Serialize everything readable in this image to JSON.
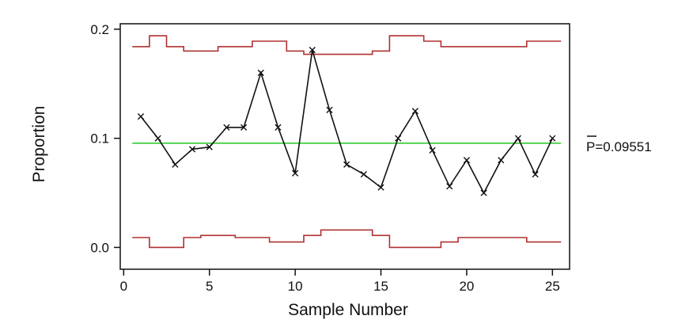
{
  "chart_data": {
    "type": "line",
    "title": "",
    "xlabel": "Sample Number",
    "ylabel": "Proportion",
    "xlim": [
      -0.2,
      26.0
    ],
    "ylim": [
      -0.02,
      0.205
    ],
    "x_ticks": [
      0,
      5,
      10,
      15,
      20,
      25
    ],
    "x_tick_labels": [
      "0",
      "5",
      "10",
      "15",
      "20",
      "25"
    ],
    "y_ticks": [
      0.0,
      0.1,
      0.2
    ],
    "y_tick_labels": [
      "0.0",
      "0.1",
      "0.2"
    ],
    "grid": false,
    "center_line": {
      "value": 0.09551,
      "label": "P=0.09551",
      "color": "#33cc33"
    },
    "series": [
      {
        "marker": "x",
        "color": "#111111",
        "x": [
          1,
          2,
          3,
          4,
          5,
          6,
          7,
          8,
          9,
          10,
          11,
          12,
          13,
          14,
          15,
          16,
          17,
          18,
          19,
          20,
          21,
          22,
          23,
          24,
          25
        ],
        "values": [
          0.12,
          0.1,
          0.076,
          0.09,
          0.092,
          0.11,
          0.11,
          0.16,
          0.11,
          0.068,
          0.181,
          0.126,
          0.076,
          0.067,
          0.055,
          0.1,
          0.125,
          0.089,
          0.056,
          0.08,
          0.05,
          0.08,
          0.1,
          0.067,
          0.1
        ]
      }
    ],
    "control_limits": {
      "color": "#b03030",
      "x": [
        1,
        2,
        3,
        4,
        5,
        6,
        7,
        8,
        9,
        10,
        11,
        12,
        13,
        14,
        15,
        16,
        17,
        18,
        19,
        20,
        21,
        22,
        23,
        24,
        25
      ],
      "ucl": [
        0.184,
        0.194,
        0.184,
        0.18,
        0.18,
        0.184,
        0.184,
        0.189,
        0.189,
        0.18,
        0.177,
        0.177,
        0.177,
        0.177,
        0.18,
        0.194,
        0.194,
        0.189,
        0.184,
        0.184,
        0.184,
        0.184,
        0.184,
        0.189,
        0.189
      ],
      "lcl": [
        0.009,
        0.0,
        0.0,
        0.009,
        0.011,
        0.011,
        0.009,
        0.009,
        0.005,
        0.005,
        0.011,
        0.016,
        0.016,
        0.016,
        0.011,
        0.0,
        0.0,
        0.0,
        0.005,
        0.009,
        0.009,
        0.009,
        0.009,
        0.005,
        0.005
      ]
    }
  }
}
